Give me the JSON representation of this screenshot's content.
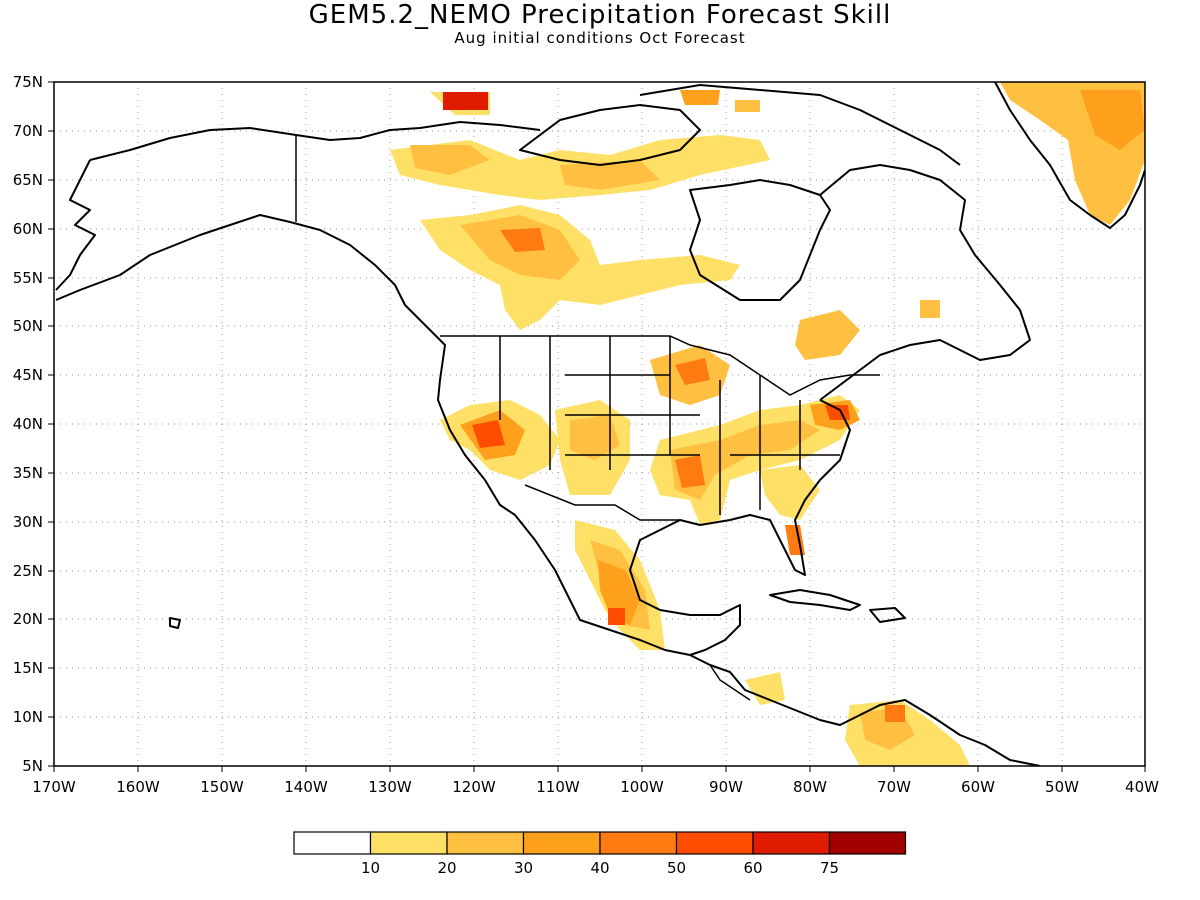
{
  "title": "GEM5.2_NEMO Precipitation Forecast Skill",
  "subtitle": "Aug initial conditions   Oct Forecast",
  "map": {
    "lon_range": [
      -170,
      -40
    ],
    "lat_range": [
      5,
      75
    ],
    "lon_ticks": [
      "170W",
      "160W",
      "150W",
      "140W",
      "130W",
      "120W",
      "110W",
      "100W",
      "90W",
      "80W",
      "70W",
      "60W",
      "50W",
      "40W"
    ],
    "lat_ticks": [
      "5N",
      "10N",
      "15N",
      "20N",
      "25N",
      "30N",
      "35N",
      "40N",
      "45N",
      "50N",
      "55N",
      "60N",
      "65N",
      "70N",
      "75N"
    ],
    "grid": "dotted"
  },
  "colorbar": {
    "levels": [
      "10",
      "20",
      "30",
      "40",
      "50",
      "60",
      "75"
    ],
    "colors": [
      "#ffffff",
      "#ffe066",
      "#ffc042",
      "#ffa01c",
      "#ff7a10",
      "#ff4d00",
      "#e01c00",
      "#a00000"
    ]
  }
}
